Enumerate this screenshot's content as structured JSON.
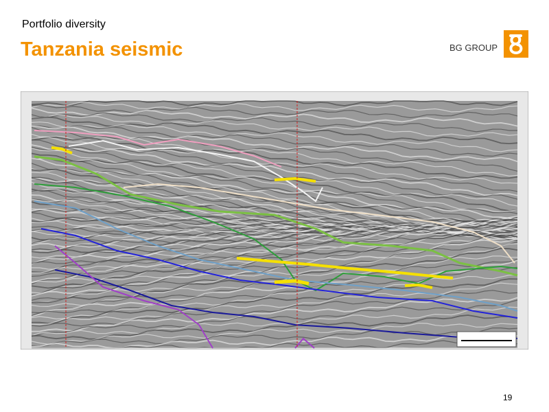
{
  "header": {
    "section": "Portfolio diversity",
    "title": "Tanzania seismic"
  },
  "logo": {
    "text": "BG GROUP"
  },
  "footer": {
    "page_number": "19"
  }
}
